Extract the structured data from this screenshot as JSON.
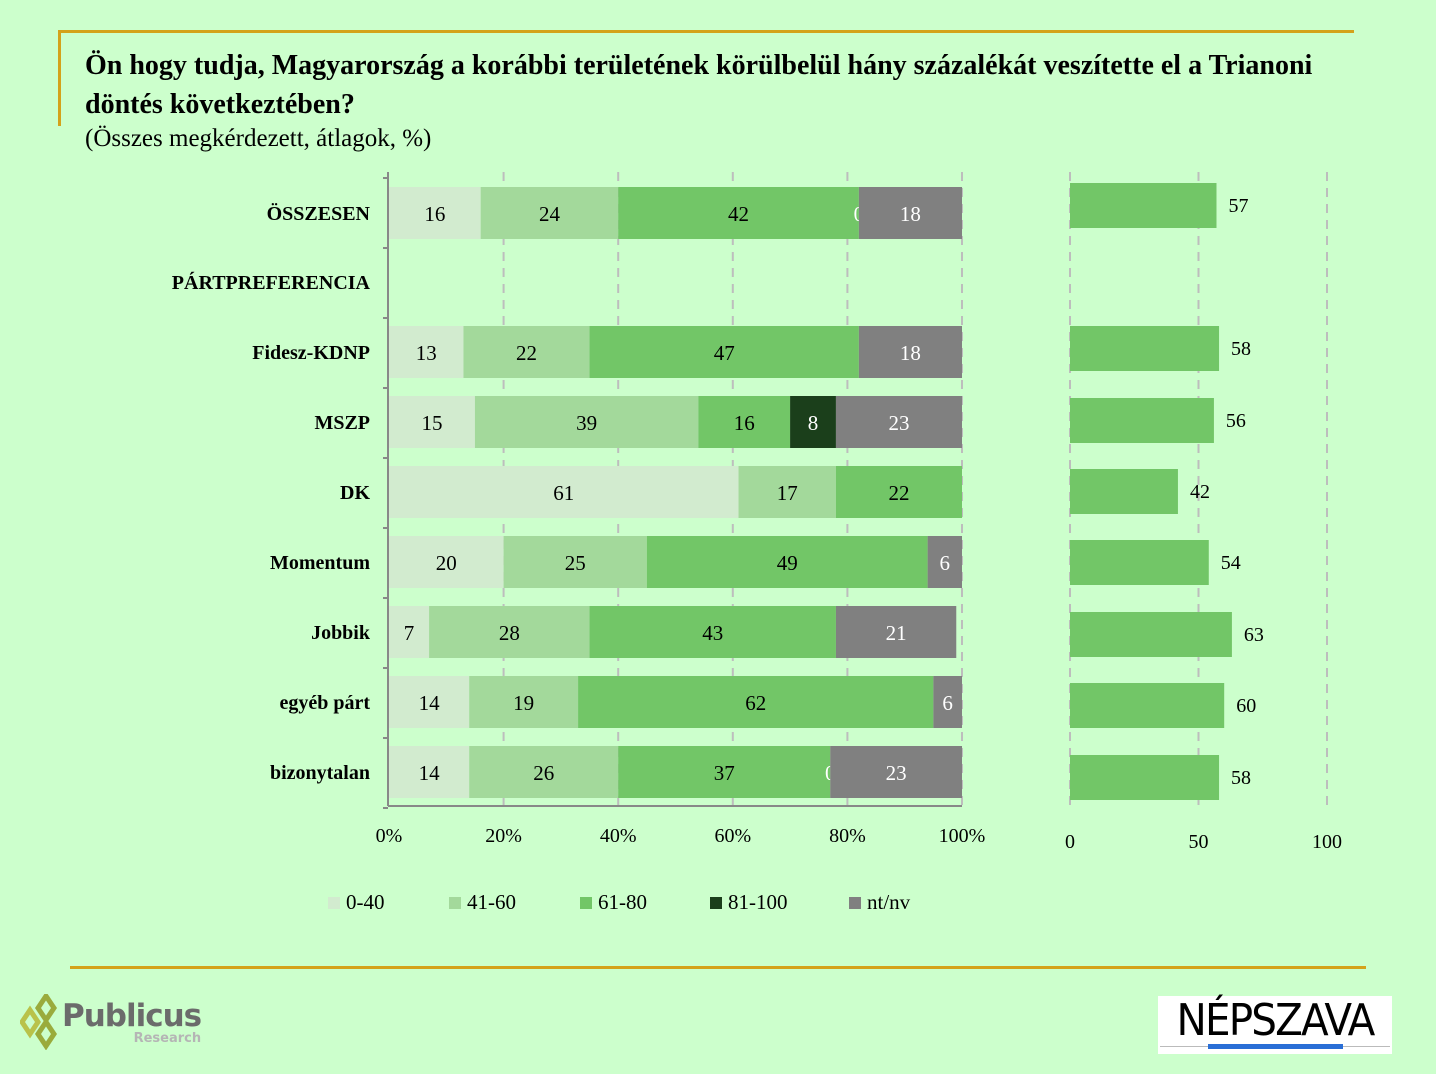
{
  "title": "Ön hogy tudja, Magyarország a korábbi területének körülbelül hány százalékát veszítette el a Trianoni döntés következtében?",
  "subtitle": "(Összes megkérdezett, átlagok, %)",
  "colors": {
    "0-40": "#d2ebcf",
    "41-60": "#a3d99b",
    "61-80": "#72c667",
    "81-100": "#1b3f1b",
    "nt/nv": "#808080",
    "frame": "#d4a21a",
    "background": "#ccffcc"
  },
  "chart_data": [
    {
      "type": "bar",
      "orientation": "horizontal",
      "stacked": "100%",
      "categories": [
        "ÖSSZESEN",
        "PÁRTPREFERENCIA",
        "Fidesz-KDNP",
        "MSZP",
        "DK",
        "Momentum",
        "Jobbik",
        "egyéb párt",
        "bizonytalan"
      ],
      "series": [
        {
          "name": "0-40",
          "values": [
            16,
            null,
            13,
            15,
            61,
            20,
            7,
            14,
            14
          ]
        },
        {
          "name": "41-60",
          "values": [
            24,
            null,
            22,
            39,
            17,
            25,
            28,
            19,
            26
          ]
        },
        {
          "name": "61-80",
          "values": [
            42,
            null,
            47,
            16,
            22,
            49,
            43,
            62,
            37
          ]
        },
        {
          "name": "81-100",
          "values": [
            0,
            null,
            null,
            8,
            null,
            null,
            null,
            null,
            0
          ]
        },
        {
          "name": "nt/nv",
          "values": [
            18,
            null,
            18,
            23,
            null,
            6,
            21,
            6,
            23
          ]
        }
      ],
      "xlim": [
        0,
        100
      ],
      "xticks": [
        "0%",
        "20%",
        "40%",
        "60%",
        "80%",
        "100%"
      ],
      "grid": true,
      "legend": "bottom"
    },
    {
      "type": "bar",
      "orientation": "horizontal",
      "categories": [
        "ÖSSZESEN",
        "PÁRTPREFERENCIA",
        "Fidesz-KDNP",
        "MSZP",
        "DK",
        "Momentum",
        "Jobbik",
        "egyéb párt",
        "bizonytalan"
      ],
      "values": [
        57,
        null,
        58,
        56,
        42,
        54,
        63,
        60,
        58
      ],
      "xlim": [
        0,
        100
      ],
      "xticks": [
        "0",
        "50",
        "100"
      ],
      "grid": true
    }
  ],
  "logos": {
    "left": "Publicus",
    "left_sub": "Research",
    "right": "NÉPSZAVA"
  }
}
